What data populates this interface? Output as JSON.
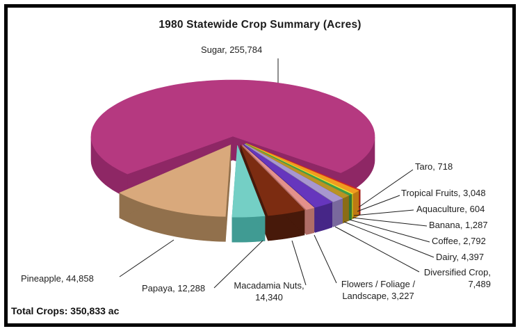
{
  "frame": {
    "border_color": "#000000",
    "background": "#FFFFFF"
  },
  "chart_data": {
    "type": "pie",
    "style": "3d-exploded-pie",
    "title": "1980 Statewide Crop Summary (Acres)",
    "unit": "acres",
    "legend": "none",
    "total_label": "Total Crops: 350,833 ac",
    "total_value": 350833,
    "slices": [
      {
        "name": "Sugar",
        "value": 255784,
        "label": "Sugar, 255,784",
        "color": "#B53980",
        "side": "#8E2765"
      },
      {
        "name": "Pineapple",
        "value": 44858,
        "label": "Pineapple, 44,858",
        "color": "#D9A97C",
        "side": "#91704C"
      },
      {
        "name": "Papaya",
        "value": 12288,
        "label": "Papaya, 12,288",
        "color": "#74CFC5",
        "side": "#409B93"
      },
      {
        "name": "Macadamia Nuts",
        "value": 14340,
        "label": "Macadamia Nuts, 14,340",
        "label_l1": "Macadamia Nuts,",
        "label_l2": "14,340",
        "color": "#7C2C11",
        "side": "#47190A"
      },
      {
        "name": "Flowers / Foliage / Landscape",
        "value": 3227,
        "label": "Flowers / Foliage / Landscape, 3,227",
        "label_l1": "Flowers / Foliage /",
        "label_l2": "Landscape, 3,227",
        "color": "#E4918B",
        "side": "#AF6D67"
      },
      {
        "name": "Diversified Crop",
        "value": 7489,
        "label": "Diversified Crop, 7,489",
        "label_l1": "Diversified Crop,",
        "label_l2": "7,489",
        "color": "#6636BD",
        "side": "#462687"
      },
      {
        "name": "Dairy",
        "value": 4397,
        "label": "Dairy, 4,397",
        "color": "#A897CF",
        "side": "#79699D"
      },
      {
        "name": "Coffee",
        "value": 2792,
        "label": "Coffee, 2,792",
        "color": "#B99324",
        "side": "#8A6C15"
      },
      {
        "name": "Banana",
        "value": 1287,
        "label": "Banana, 1,287",
        "color": "#3F9E49",
        "side": "#2F7637"
      },
      {
        "name": "Aquaculture",
        "value": 604,
        "label": "Aquaculture, 604",
        "color": "#ECE736",
        "side": "#B5AF1C"
      },
      {
        "name": "Tropical Fruits",
        "value": 3048,
        "label": "Tropical Fruits, 3,048",
        "color": "#F19C1F",
        "side": "#BE7913"
      },
      {
        "name": "Taro",
        "value": 718,
        "label": "Taro, 718",
        "color": "#D32B23",
        "side": "#9E1D17"
      }
    ]
  }
}
